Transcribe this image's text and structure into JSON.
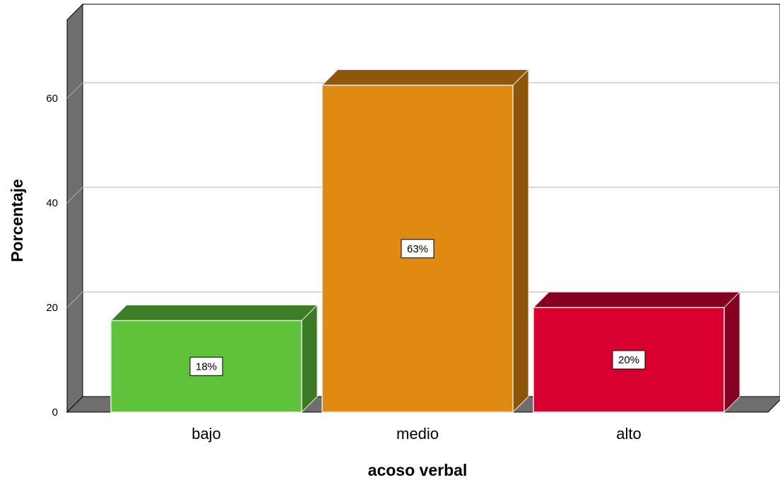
{
  "chart_data": {
    "type": "bar",
    "categories": [
      "bajo",
      "medio",
      "alto"
    ],
    "values": [
      17.5,
      62.5,
      20
    ],
    "data_labels": [
      "18%",
      "63%",
      "20%"
    ],
    "colors": [
      "#5ec23a",
      "#e08a12",
      "#d8002f"
    ],
    "side_colors": [
      "#3a7a24",
      "#8c5508",
      "#850020"
    ],
    "top_colors": [
      "#3d7d26",
      "#8f5709",
      "#880021"
    ],
    "title": "",
    "xlabel": "acoso verbal",
    "ylabel": "Porcentaje",
    "ylim": [
      0,
      75
    ],
    "yticks": [
      0,
      20,
      40,
      60
    ],
    "grid": true,
    "style": "3d"
  }
}
